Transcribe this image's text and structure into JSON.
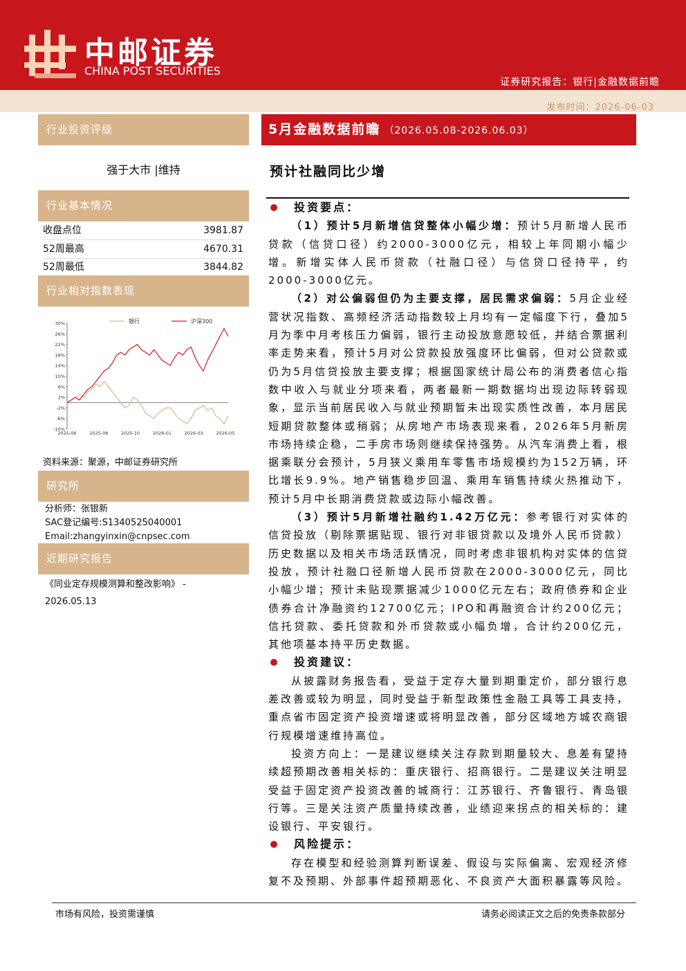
{
  "header": {
    "brand_cn": "中邮证券",
    "brand_en": "CHINA POST SECURITIES",
    "report_type": "证券研究报告：银行|金融数据前瞻",
    "publish_date": "发布时间：2026-06-03"
  },
  "sidebar": {
    "rating_title": "行业投资评级",
    "rating": "强于大市 |维持",
    "basics_title": "行业基本情况",
    "basics": [
      {
        "label": "收盘点位",
        "value": 3981.87
      },
      {
        "label": "52周最高",
        "value": 4670.31
      },
      {
        "label": "52周最低",
        "value": 3844.82
      }
    ],
    "chart_title": "行业相对指数表现",
    "source": "资料来源：聚源，中邮证券研究所",
    "research_title": "研究所",
    "analyst": [
      "分析师：张银新",
      "SAC登记编号:S1340525040001",
      "Email:zhangyinxin@cnpsec.com"
    ],
    "recent_title": "近期研究报告",
    "recent": [
      "《同业定存规模测算和整改影响》 -",
      "2026.05.13"
    ]
  },
  "chart_data": {
    "type": "line",
    "x_labels": [
      "2025-06",
      "2025-08",
      "2025-10",
      "2026-01",
      "2026-03",
      "2026-05"
    ],
    "ylim": [
      -10,
      30
    ],
    "yticks": [
      {
        "value": 30,
        "label": "30%"
      },
      {
        "value": 26,
        "label": "26%"
      },
      {
        "value": 22,
        "label": "22%"
      },
      {
        "value": 18,
        "label": "18%"
      },
      {
        "value": 14,
        "label": "14%"
      },
      {
        "value": 10,
        "label": "10%"
      },
      {
        "value": 6,
        "label": "6%"
      },
      {
        "value": 2,
        "label": "2%"
      },
      {
        "value": -2,
        "label": "-2%"
      },
      {
        "value": -6,
        "label": "-6%"
      },
      {
        "value": -10,
        "label": "-10%"
      }
    ],
    "grid": false,
    "series": [
      {
        "name": "银行",
        "color": "#d9b587",
        "values": [
          0,
          1,
          2,
          3,
          2,
          4,
          5,
          7,
          6,
          8,
          6,
          4,
          2,
          0,
          -2,
          -1,
          2,
          1,
          -1,
          -4,
          -5,
          -6,
          -4,
          -3,
          -2,
          -2,
          -4,
          -6,
          -7,
          -8,
          -6,
          -3,
          -2,
          -1,
          -3,
          -2,
          -5,
          -6,
          -8,
          -5
        ]
      },
      {
        "name": "沪深300",
        "color": "#d7191f",
        "values": [
          0,
          1,
          2,
          1,
          3,
          5,
          6,
          8,
          10,
          12,
          13,
          15,
          18,
          19,
          18,
          20,
          21,
          22,
          20,
          19,
          18,
          20,
          18,
          16,
          15,
          14,
          17,
          19,
          18,
          20,
          21,
          17,
          14,
          12,
          16,
          19,
          22,
          25,
          28,
          25
        ]
      }
    ]
  },
  "main": {
    "banner_title": "5月金融数据前瞻",
    "banner_period": "（2026.05.08-2026.06.03）",
    "headline": "预计社融同比少增",
    "sections": [
      {
        "heading": "投资要点：",
        "paragraphs": [
          {
            "lead": "（1）预计5月新增信贷整体小幅少增：",
            "text": "预计5月新增人民币贷款（信贷口径）约2000-3000亿元，相较上年同期小幅少增。新增实体人民币贷款（社融口径）与信贷口径持平，约2000-3000亿元。"
          },
          {
            "lead": "（2）对公偏弱但仍为主要支撑，居民需求偏弱：",
            "text": "5月企业经营状况指数、高频经济活动指数较上月均有一定幅度下行，叠加5月为季中月考核压力偏弱，银行主动投放意愿较低，并结合票据利率走势来看，预计5月对公贷款投放强度环比偏弱，但对公贷款或仍为5月信贷投放主要支撑；根据国家统计局公布的消费者信心指数中收入与就业分项来看，两者最新一期数据均出现边际转弱现象，显示当前居民收入与就业预期暂未出现实质性改善，本月居民短期贷款整体或稍弱；从房地产市场表现来看，2026年5月新房市场持续企稳，二手房市场则继续保持强势。从汽车消费上看，根据乘联分会预计，5月狭义乘用车零售市场规模约为152万辆，环比增长9.9%。地产销售稳步回温、乘用车销售持续火热推动下，预计5月中长期消费贷款或边际小幅改善。"
          },
          {
            "lead": "（3）预计5月新增社融约1.42万亿元：",
            "text": "参考银行对实体的信贷投放（剔除票据贴现、银行对非银贷款以及境外人民币贷款）历史数据以及相关市场活跃情况，同时考虑非银机构对实体的信贷投放，预计社融口径新增人民币贷款在2000-3000亿元，同比小幅少增；预计未贴现票据减少1000亿元左右；政府债券和企业债券合计净融资约12700亿元；IPO和再融资合计约200亿元；信托贷款、委托贷款和外币贷款或小幅负增，合计约200亿元，其他项基本持平历史数据。"
          }
        ]
      },
      {
        "heading": "投资建议：",
        "paragraphs": [
          {
            "text": "从披露财务报告看，受益于定存大量到期重定价，部分银行息差改善或较为明显，同时受益于新型政策性金融工具等工具支持，重点省市固定资产投资增速或将明显改善，部分区域地方城农商银行规模增速维持高位。"
          },
          {
            "text": "投资方向上：一是建议继续关注存款到期量较大、息差有望持续超预期改善相关标的：重庆银行、招商银行。二是建议关注明显受益于固定资产投资改善的城商行：江苏银行、齐鲁银行、青岛银行等。三是关注资产质量持续改善，业绩迎来拐点的相关标的：建设银行、平安银行。"
          }
        ]
      },
      {
        "heading": "风险提示：",
        "paragraphs": [
          {
            "text": "存在模型和经验测算判断误差、假设与实际偏离、宏观经济修复不及预期、外部事件超预期恶化、不良资产大面积暴露等风险。"
          }
        ]
      }
    ]
  },
  "footer": {
    "left": "市场有风险，投资需谨慎",
    "right": "请务必阅读正文之后的免责条款部分"
  }
}
